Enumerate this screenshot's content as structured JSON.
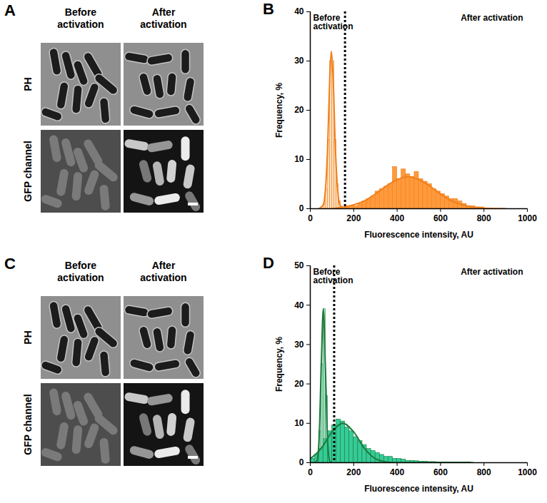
{
  "image_panels": [
    {
      "letter": "A",
      "columns": [
        "Before activation",
        "After activation"
      ],
      "rows": [
        "PH",
        "GFP channel"
      ]
    },
    {
      "letter": "C",
      "columns": [
        "Before activation",
        "After activation"
      ],
      "rows": [
        "PH",
        "GFP channel"
      ]
    }
  ],
  "chart_data": [
    {
      "type": "histogram",
      "title": "B",
      "xlabel": "Fluorescence intensity, AU",
      "ylabel": "Frequency, %",
      "xlim": [
        0,
        1000
      ],
      "xticks": [
        0,
        200,
        400,
        600,
        800,
        1000
      ],
      "ylim": [
        0,
        40
      ],
      "yticks": [
        0,
        10,
        20,
        30,
        40
      ],
      "color": "#f07f1a",
      "threshold": 160,
      "series": [
        {
          "name": "Before activation",
          "color": "#fbe0bf",
          "bins": [
            60,
            70,
            80,
            90,
            100,
            110,
            120,
            130,
            140,
            150
          ],
          "values": [
            1,
            4,
            14,
            30,
            30,
            14,
            5,
            1.5,
            0.5
          ],
          "fit": {
            "x": [
              40,
              60,
              70,
              80,
              90,
              97,
              105,
              115,
              125,
              135,
              150,
              170
            ],
            "y": [
              0,
              0.8,
              4,
              12.5,
              27,
              32,
              27,
              13,
              4.5,
              1,
              0,
              0
            ]
          }
        },
        {
          "name": "After activation",
          "color": "#ff9a3c",
          "bins": [
            160,
            180,
            200,
            220,
            240,
            260,
            280,
            300,
            320,
            340,
            360,
            380,
            400,
            420,
            440,
            460,
            480,
            500,
            520,
            540,
            560,
            580,
            600,
            620,
            640,
            660,
            680,
            700,
            720,
            740,
            760,
            780,
            800
          ],
          "values": [
            0.3,
            0.5,
            0.5,
            1,
            1.5,
            2,
            2.5,
            3.5,
            4,
            4.5,
            5,
            8.5,
            6,
            8,
            7,
            6.5,
            7.5,
            6,
            5.5,
            5,
            4,
            3.5,
            3,
            2.5,
            2,
            2,
            1.5,
            1,
            0.5,
            0.5,
            0.3,
            0.3
          ],
          "fit": {
            "x": [
              100,
              200,
              250,
              300,
              350,
              400,
              450,
              500,
              550,
              600,
              650,
              700,
              800,
              900
            ],
            "y": [
              0,
              0.8,
              1.6,
              3,
              4.6,
              5.9,
              6.5,
              5.9,
              4.6,
              3,
              1.6,
              0.8,
              0.1,
              0
            ]
          }
        }
      ]
    },
    {
      "type": "histogram",
      "title": "D",
      "xlabel": "Fluorescence intensity, AU",
      "ylabel": "Frequency, %",
      "xlim": [
        0,
        1000
      ],
      "xticks": [
        0,
        200,
        400,
        600,
        800,
        1000
      ],
      "ylim": [
        0,
        50
      ],
      "yticks": [
        0,
        10,
        20,
        30,
        40,
        50
      ],
      "color": "#1f7a3a",
      "threshold": 110,
      "series": [
        {
          "name": "Before activation",
          "color": "#a8e8cf",
          "bins": [
            20,
            30,
            40,
            50,
            60,
            70,
            80,
            90,
            100,
            110
          ],
          "values": [
            0.5,
            2,
            8,
            25,
            39,
            17,
            6,
            2,
            0.5
          ],
          "fit": {
            "x": [
              20,
              30,
              40,
              50,
              60,
              70,
              80,
              90,
              100
            ],
            "y": [
              0,
              0.4,
              5.3,
              23.7,
              39,
              23.7,
              5.3,
              0.4,
              0
            ]
          }
        },
        {
          "name": "After activation",
          "color": "#33cc99",
          "bins": [
            0,
            20,
            40,
            60,
            80,
            100,
            120,
            140,
            160,
            180,
            200,
            220,
            240,
            260,
            280,
            300,
            320,
            340,
            360,
            380,
            400,
            420,
            440,
            460,
            480,
            500,
            520,
            540,
            560,
            580,
            600,
            620,
            640,
            660,
            680,
            700,
            720,
            740
          ],
          "values": [
            1,
            2,
            3.5,
            6,
            8,
            9.5,
            11,
            10.5,
            9,
            8,
            6.5,
            5.5,
            4.5,
            3.5,
            3,
            2.5,
            2,
            1.5,
            1.5,
            1,
            1,
            0.8,
            0.5,
            0.5,
            0.4,
            0.3,
            0.3,
            0.2,
            0.2,
            0.1,
            0.1,
            0.1,
            0.1,
            0.1,
            0.1,
            0.1,
            0.1
          ],
          "fit": {
            "x": [
              0,
              50,
              100,
              150,
              200,
              250,
              300,
              350,
              400,
              750
            ],
            "y": [
              1,
              3.6,
              7.8,
              10,
              7.8,
              3.6,
              1,
              0.2,
              0,
              0
            ]
          }
        }
      ]
    }
  ]
}
